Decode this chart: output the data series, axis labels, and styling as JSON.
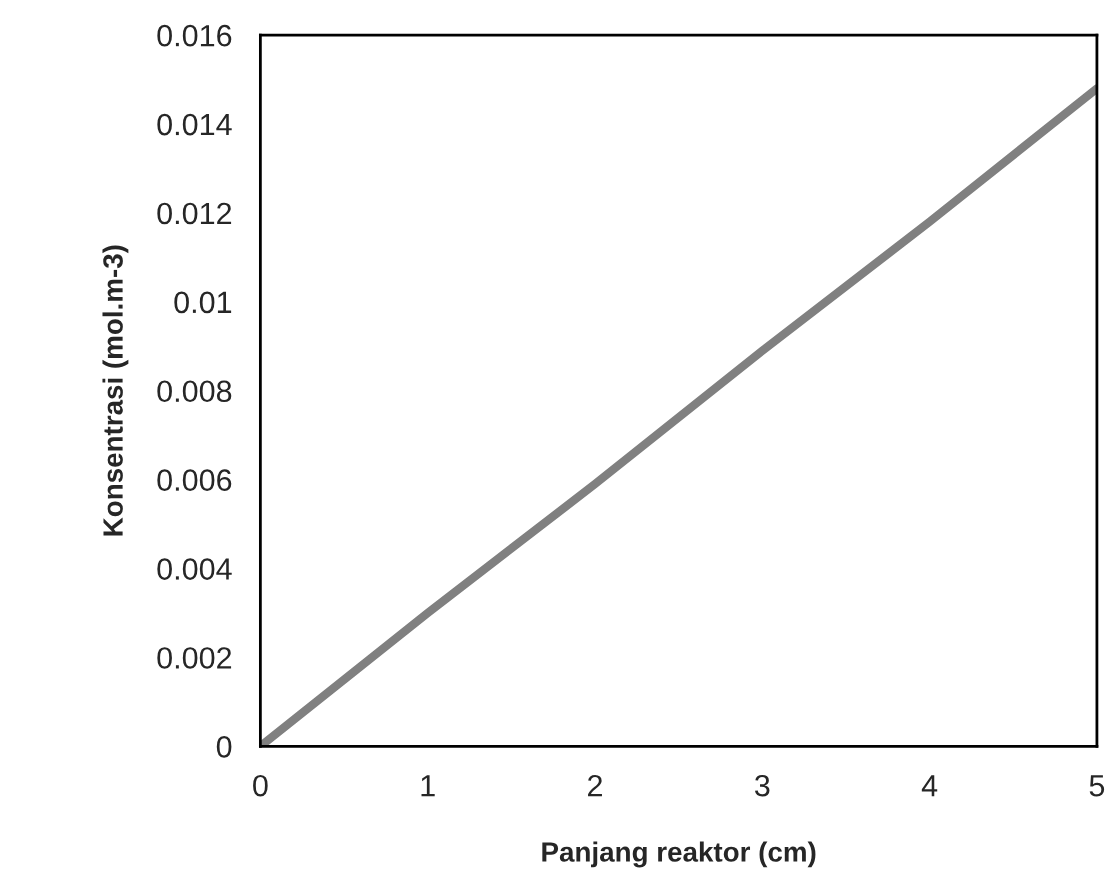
{
  "chart_data": {
    "type": "line",
    "xlabel": "Panjang reaktor (cm)",
    "ylabel": "Konsentrasi (mol.m-3)",
    "x": [
      0,
      1,
      2,
      3,
      4,
      5
    ],
    "series": [
      {
        "color": "#808080",
        "values": [
          0,
          0.003,
          0.0059,
          0.0089,
          0.0118,
          0.0148
        ]
      }
    ],
    "xlim": [
      0,
      5
    ],
    "xticks": [
      0,
      1,
      2,
      3,
      4,
      5
    ],
    "ylim": [
      0,
      0.016
    ],
    "yticks": [
      0,
      0.002,
      0.004,
      0.006,
      0.008,
      0.01,
      0.012,
      0.014,
      0.016
    ],
    "grid": false,
    "legend": false,
    "marker": "none",
    "line_style": "solid"
  }
}
